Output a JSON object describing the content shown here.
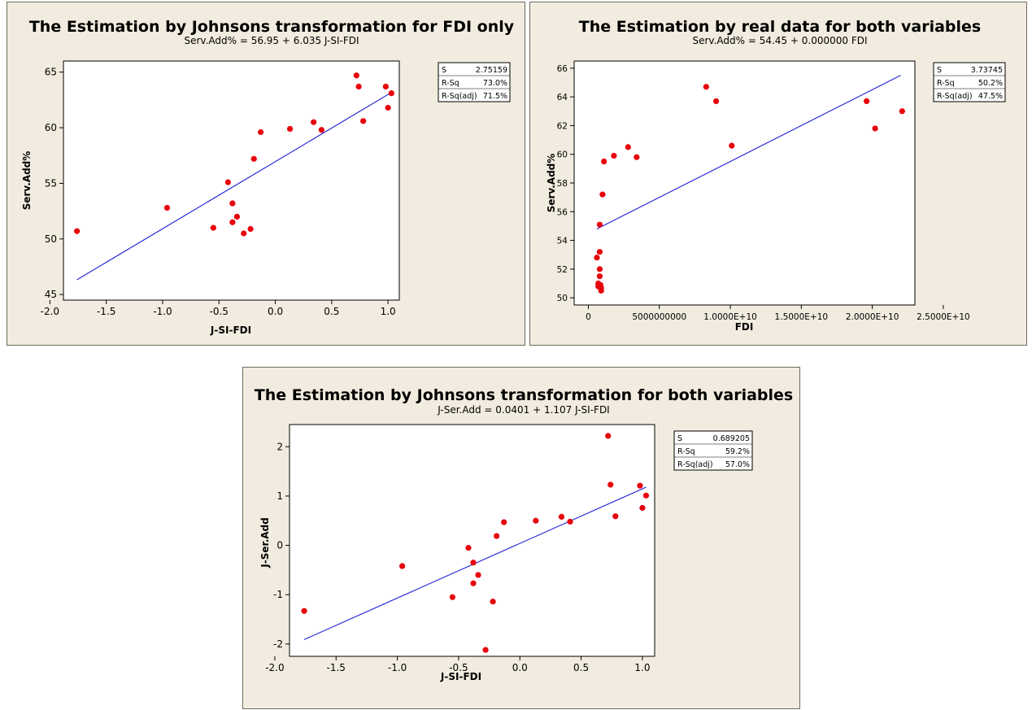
{
  "colors": {
    "panel_bg": "#f1ecdf",
    "plot_bg": "#ffffff",
    "point": "#e8000b",
    "line": "#1f1fd6"
  },
  "chart_data": [
    {
      "type": "scatter",
      "title": "The Estimation by Johnsons transformation for FDI only",
      "subtitle": "Serv.Add% = 56.95 + 6.035 J-SI-FDI",
      "xlabel": "J-SI-FDI",
      "ylabel": "Serv.Add%",
      "xlim": [
        -1.88,
        1.1
      ],
      "ylim": [
        44.5,
        66
      ],
      "xticks": [
        -2.0,
        -1.5,
        -1.0,
        -0.5,
        0.0,
        0.5,
        1.0
      ],
      "xtick_labels": [
        "-2.0",
        "-1.5",
        "-1.0",
        "-0.5",
        "0.0",
        "0.5",
        "1.0"
      ],
      "yticks": [
        45,
        50,
        55,
        60,
        65
      ],
      "ytick_labels": [
        "45",
        "50",
        "55",
        "60",
        "65"
      ],
      "fit": {
        "x": [
          -1.76,
          1.03
        ],
        "y": [
          46.33,
          63.17
        ]
      },
      "points": {
        "x": [
          -1.76,
          -0.96,
          -0.55,
          -0.42,
          -0.38,
          -0.38,
          -0.34,
          -0.28,
          -0.22,
          -0.19,
          -0.13,
          0.13,
          0.34,
          0.41,
          0.72,
          0.74,
          0.78,
          0.98,
          1.0,
          1.03
        ],
        "y": [
          50.7,
          52.8,
          51.0,
          55.1,
          53.2,
          51.5,
          52.0,
          50.5,
          50.9,
          57.2,
          59.6,
          59.9,
          60.5,
          59.8,
          64.7,
          63.7,
          60.6,
          63.7,
          61.8,
          63.1
        ]
      },
      "stats": [
        {
          "label": "S",
          "value": "2.75159"
        },
        {
          "label": "R-Sq",
          "value": "73.0%"
        },
        {
          "label": "R-Sq(adj)",
          "value": "71.5%"
        }
      ]
    },
    {
      "type": "scatter",
      "title": "The Estimation by real data for both variables",
      "subtitle": "Serv.Add% = 54.45 + 0.000000 FDI",
      "xlabel": "FDI",
      "ylabel": "Serv.Add%",
      "xlim": [
        -1000000000,
        23000000000
      ],
      "ylim": [
        49.5,
        66.5
      ],
      "xticks": [
        0,
        5000000000,
        10000000000,
        15000000000,
        20000000000,
        25000000000
      ],
      "xtick_labels": [
        "0",
        "5000000000",
        "1.0000E+10",
        "1.5000E+10",
        "2.0000E+10",
        "2.5000E+10"
      ],
      "yticks": [
        50,
        52,
        54,
        56,
        58,
        60,
        62,
        64,
        66
      ],
      "ytick_labels": [
        "50",
        "52",
        "54",
        "56",
        "58",
        "60",
        "62",
        "64",
        "66"
      ],
      "fit": {
        "x": [
          600000000,
          22000000000
        ],
        "y": [
          54.8,
          65.5
        ]
      },
      "points": {
        "x": [
          600000000,
          700000000,
          700000000,
          800000000,
          800000000,
          800000000,
          800000000,
          850000000,
          900000000,
          900000000,
          1000000000,
          1100000000,
          1800000000,
          2800000000,
          3400000000,
          8300000000,
          9000000000,
          10100000000,
          19600000000,
          20200000000,
          22100000000
        ],
        "y": [
          52.8,
          51.0,
          50.8,
          55.1,
          53.2,
          52.0,
          51.5,
          50.9,
          50.7,
          50.5,
          57.2,
          59.5,
          59.9,
          60.5,
          59.8,
          64.7,
          63.7,
          60.6,
          63.7,
          61.8,
          63.0
        ]
      },
      "stats": [
        {
          "label": "S",
          "value": "3.73745"
        },
        {
          "label": "R-Sq",
          "value": "50.2%"
        },
        {
          "label": "R-Sq(adj)",
          "value": "47.5%"
        }
      ]
    },
    {
      "type": "scatter",
      "title": "The Estimation by Johnsons transformation for both variables",
      "subtitle": "J-Ser.Add = 0.0401 + 1.107 J-SI-FDI",
      "xlabel": "J-SI-FDI",
      "ylabel": "J-Ser.Add",
      "xlim": [
        -1.88,
        1.1
      ],
      "ylim": [
        -2.25,
        2.45
      ],
      "xticks": [
        -2.0,
        -1.5,
        -1.0,
        -0.5,
        0.0,
        0.5,
        1.0
      ],
      "xtick_labels": [
        "-2.0",
        "-1.5",
        "-1.0",
        "-0.5",
        "0.0",
        "0.5",
        "1.0"
      ],
      "yticks": [
        -2,
        -1,
        0,
        1,
        2
      ],
      "ytick_labels": [
        "-2",
        "-1",
        "0",
        "1",
        "2"
      ],
      "fit": {
        "x": [
          -1.76,
          1.03
        ],
        "y": [
          -1.91,
          1.18
        ]
      },
      "points": {
        "x": [
          -1.76,
          -0.96,
          -0.55,
          -0.42,
          -0.38,
          -0.38,
          -0.34,
          -0.28,
          -0.22,
          -0.19,
          -0.13,
          0.13,
          0.34,
          0.41,
          0.72,
          0.74,
          0.78,
          0.98,
          1.0,
          1.03
        ],
        "y": [
          -1.33,
          -0.42,
          -1.05,
          -0.05,
          -0.35,
          -0.77,
          -0.6,
          -2.12,
          -1.14,
          0.19,
          0.47,
          0.5,
          0.58,
          0.48,
          2.22,
          1.23,
          0.59,
          1.21,
          0.76,
          1.01
        ]
      },
      "stats": [
        {
          "label": "S",
          "value": "0.689205"
        },
        {
          "label": "R-Sq",
          "value": "59.2%"
        },
        {
          "label": "R-Sq(adj)",
          "value": "57.0%"
        }
      ]
    }
  ]
}
